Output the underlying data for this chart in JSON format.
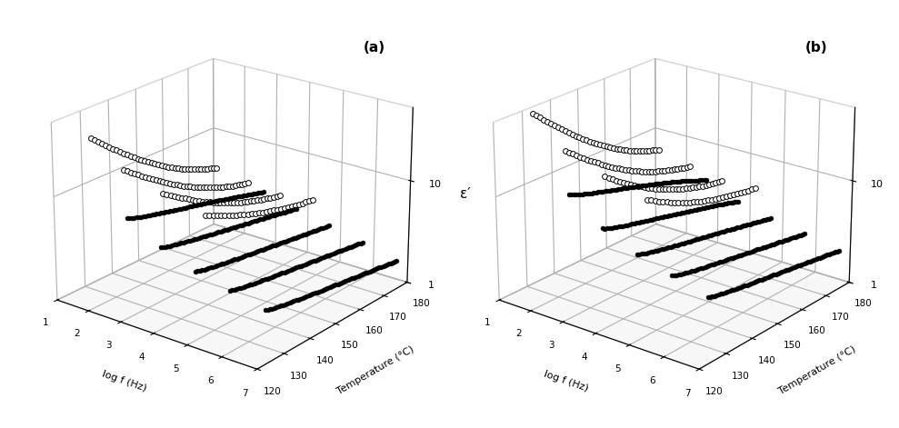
{
  "title_a": "(a)",
  "title_b": "(b)",
  "xlabel": "log f (Hz)",
  "ylabel_temp": "Temperature (°C)",
  "zlabel": "ε′",
  "figsize": [
    9.89,
    4.71
  ],
  "dpi": 100,
  "elev": 22,
  "azim": -52,
  "panel_a": {
    "open_curves": [
      {
        "freq": 1.5,
        "t0": 128,
        "t1": 175,
        "e0": 32,
        "e1": 3.5,
        "decay": 3.0,
        "n": 38
      },
      {
        "freq": 2.5,
        "t0": 128,
        "t1": 175,
        "e0": 20,
        "e1": 3.2,
        "decay": 2.8,
        "n": 38
      },
      {
        "freq": 3.5,
        "t0": 130,
        "t1": 175,
        "e0": 14,
        "e1": 3.0,
        "decay": 2.5,
        "n": 35
      },
      {
        "freq": 4.5,
        "t0": 133,
        "t1": 175,
        "e0": 10,
        "e1": 3.5,
        "decay": 2.0,
        "n": 30
      }
    ],
    "filled_curves": [
      {
        "freq": 3.0,
        "t0": 123,
        "t1": 175,
        "e0": 9.0,
        "e1": 3.8,
        "n": 65
      },
      {
        "freq": 4.0,
        "t0": 123,
        "t1": 175,
        "e0": 6.0,
        "e1": 3.2,
        "n": 65
      },
      {
        "freq": 5.0,
        "t0": 123,
        "t1": 175,
        "e0": 4.5,
        "e1": 2.7,
        "n": 65
      },
      {
        "freq": 6.0,
        "t0": 123,
        "t1": 175,
        "e0": 3.8,
        "e1": 2.3,
        "n": 65
      },
      {
        "freq": 7.0,
        "t0": 123,
        "t1": 175,
        "e0": 3.2,
        "e1": 1.9,
        "n": 65
      }
    ]
  },
  "panel_b": {
    "open_curves": [
      {
        "freq": 1.5,
        "t0": 128,
        "t1": 175,
        "e0": 55,
        "e1": 5.5,
        "decay": 3.2,
        "n": 38
      },
      {
        "freq": 2.5,
        "t0": 128,
        "t1": 175,
        "e0": 30,
        "e1": 5.0,
        "decay": 3.0,
        "n": 38
      },
      {
        "freq": 3.5,
        "t0": 130,
        "t1": 175,
        "e0": 20,
        "e1": 4.5,
        "decay": 2.8,
        "n": 35
      },
      {
        "freq": 4.5,
        "t0": 133,
        "t1": 175,
        "e0": 14,
        "e1": 5.0,
        "decay": 2.5,
        "n": 30
      }
    ],
    "filled_curves": [
      {
        "freq": 3.0,
        "t0": 123,
        "t1": 175,
        "e0": 15,
        "e1": 5.0,
        "n": 65
      },
      {
        "freq": 4.0,
        "t0": 123,
        "t1": 175,
        "e0": 9.0,
        "e1": 3.8,
        "n": 65
      },
      {
        "freq": 5.0,
        "t0": 123,
        "t1": 175,
        "e0": 6.5,
        "e1": 3.2,
        "n": 65
      },
      {
        "freq": 6.0,
        "t0": 123,
        "t1": 175,
        "e0": 5.2,
        "e1": 2.8,
        "n": 65
      },
      {
        "freq": 7.0,
        "t0": 123,
        "t1": 175,
        "e0": 4.2,
        "e1": 2.4,
        "n": 65
      }
    ]
  }
}
